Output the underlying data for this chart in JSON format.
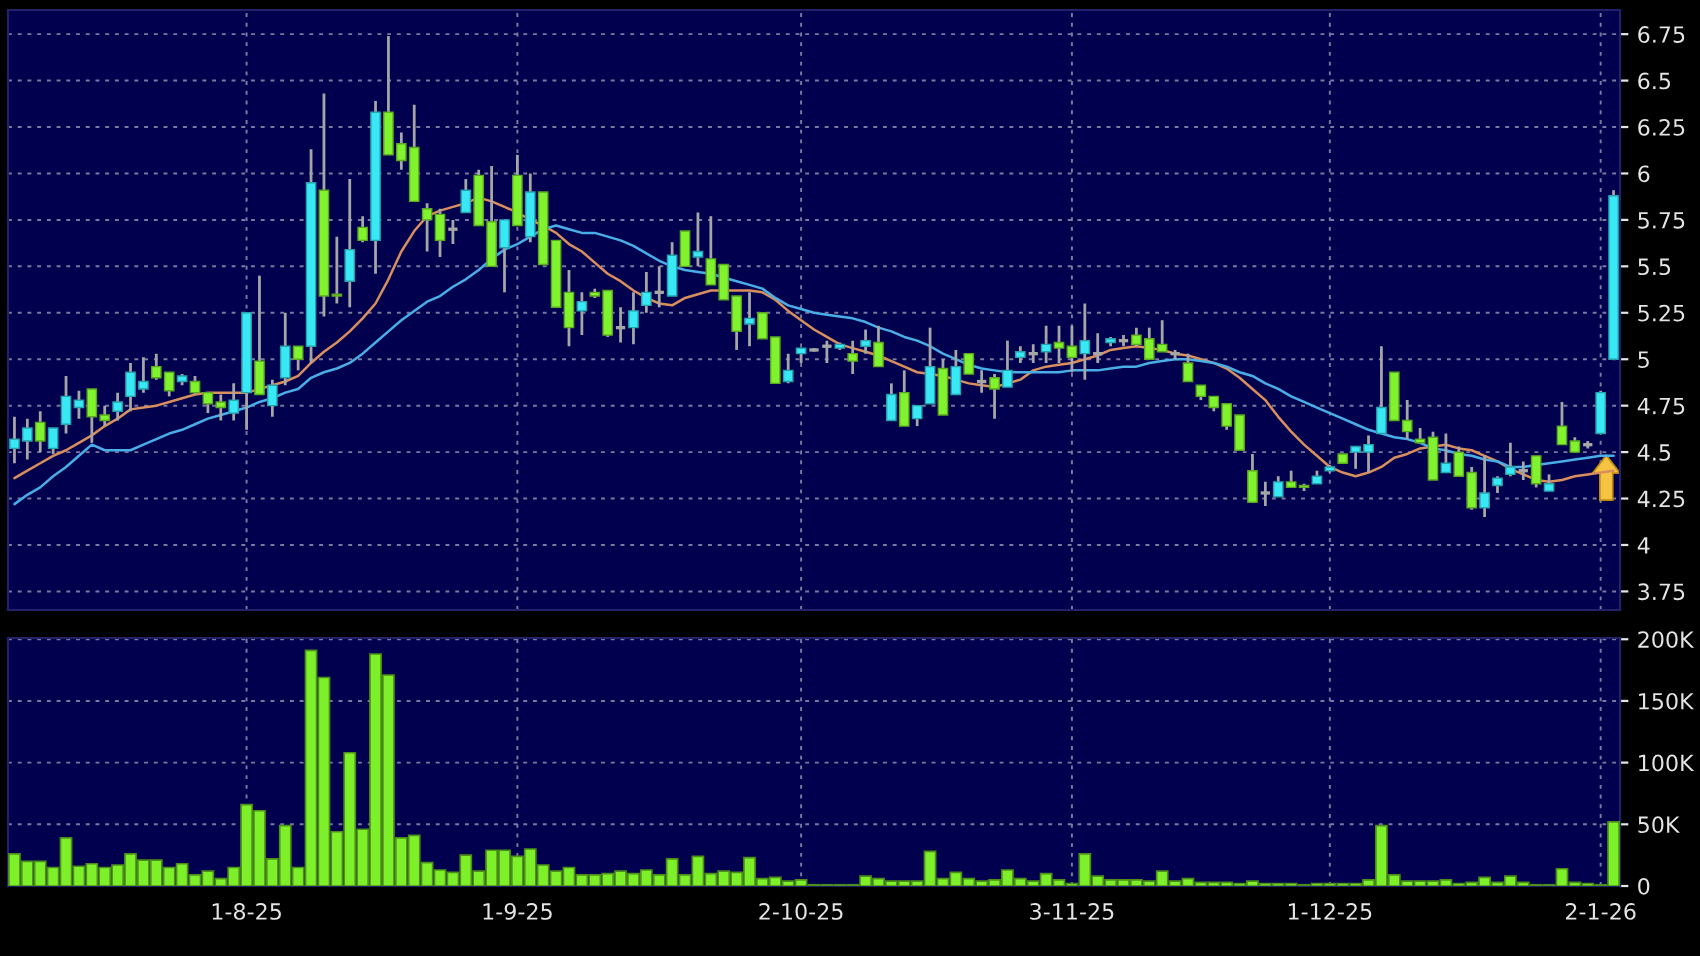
{
  "chart_data": [
    {
      "type": "candlestick",
      "categories": [
        null,
        null,
        null,
        null,
        null,
        null,
        null,
        null,
        null,
        null,
        null,
        null,
        null,
        null,
        null,
        null,
        null,
        null,
        null,
        null,
        null,
        null,
        null,
        null,
        null,
        null,
        null,
        null,
        null,
        null,
        null,
        null,
        null,
        null,
        null,
        null,
        null,
        null,
        null,
        null,
        null,
        null,
        null,
        null,
        null,
        null,
        null,
        null,
        null,
        null,
        null,
        null,
        null,
        null,
        null,
        null,
        null,
        null,
        null,
        null,
        null,
        null,
        null,
        null,
        null,
        null,
        null,
        null,
        null,
        null,
        null,
        null,
        null,
        null,
        null,
        null,
        null,
        null,
        null,
        null,
        null,
        null,
        null,
        null,
        null,
        null,
        null,
        null,
        null,
        null,
        null,
        null,
        null,
        null,
        null,
        null,
        null,
        null,
        null,
        null,
        null,
        null,
        null,
        null,
        null,
        null,
        null,
        null,
        null,
        null,
        null,
        null,
        null,
        null,
        null,
        null,
        null,
        null,
        null,
        null,
        null,
        null,
        null,
        null,
        null
      ],
      "ohlc": [
        [
          4.52,
          4.69,
          4.44,
          4.57
        ],
        [
          4.56,
          4.68,
          4.46,
          4.63
        ],
        [
          4.66,
          4.72,
          4.5,
          4.56
        ],
        [
          4.52,
          4.63,
          4.49,
          4.63
        ],
        [
          4.65,
          4.91,
          4.6,
          4.8
        ],
        [
          4.74,
          4.83,
          4.68,
          4.78
        ],
        [
          4.84,
          4.84,
          4.55,
          4.69
        ],
        [
          4.7,
          4.75,
          4.64,
          4.67
        ],
        [
          4.72,
          4.82,
          4.67,
          4.77
        ],
        [
          4.8,
          4.98,
          4.72,
          4.93
        ],
        [
          4.84,
          5.01,
          4.82,
          4.88
        ],
        [
          4.96,
          5.03,
          4.89,
          4.9
        ],
        [
          4.93,
          4.93,
          4.8,
          4.83
        ],
        [
          4.88,
          4.92,
          4.86,
          4.91
        ],
        [
          4.88,
          4.91,
          4.81,
          4.82
        ],
        [
          4.82,
          4.82,
          4.71,
          4.76
        ],
        [
          4.77,
          4.81,
          4.67,
          4.74
        ],
        [
          4.71,
          4.87,
          4.67,
          4.78
        ],
        [
          4.82,
          5.25,
          4.62,
          5.25
        ],
        [
          4.99,
          5.45,
          4.81,
          4.81
        ],
        [
          4.75,
          4.89,
          4.69,
          4.86
        ],
        [
          4.9,
          5.25,
          4.86,
          5.07
        ],
        [
          5.07,
          5.07,
          4.94,
          5.0
        ],
        [
          5.07,
          6.13,
          4.98,
          5.95
        ],
        [
          5.91,
          6.43,
          5.23,
          5.34
        ],
        [
          5.35,
          5.66,
          5.3,
          5.34
        ],
        [
          5.42,
          5.97,
          5.28,
          5.59
        ],
        [
          5.71,
          5.77,
          5.63,
          5.64
        ],
        [
          5.64,
          6.39,
          5.46,
          6.33
        ],
        [
          6.33,
          6.74,
          6.1,
          6.1
        ],
        [
          6.16,
          6.22,
          6.02,
          6.07
        ],
        [
          6.14,
          6.37,
          5.85,
          5.85
        ],
        [
          5.81,
          5.84,
          5.58,
          5.75
        ],
        [
          5.78,
          5.81,
          5.55,
          5.64
        ],
        [
          5.7,
          5.75,
          5.62,
          5.7
        ],
        [
          5.79,
          5.97,
          5.79,
          5.91
        ],
        [
          5.99,
          6.02,
          5.72,
          5.72
        ],
        [
          5.74,
          6.04,
          5.5,
          5.5
        ],
        [
          5.6,
          5.75,
          5.36,
          5.75
        ],
        [
          5.99,
          6.1,
          5.72,
          5.72
        ],
        [
          5.66,
          6.0,
          5.63,
          5.9
        ],
        [
          5.9,
          5.9,
          5.51,
          5.51
        ],
        [
          5.64,
          5.64,
          5.28,
          5.28
        ],
        [
          5.36,
          5.48,
          5.07,
          5.17
        ],
        [
          5.26,
          5.36,
          5.13,
          5.31
        ],
        [
          5.36,
          5.38,
          5.33,
          5.34
        ],
        [
          5.37,
          5.37,
          5.12,
          5.13
        ],
        [
          5.17,
          5.28,
          5.09,
          5.17
        ],
        [
          5.17,
          5.36,
          5.08,
          5.26
        ],
        [
          5.29,
          5.47,
          5.25,
          5.36
        ],
        [
          5.36,
          5.5,
          5.28,
          5.36
        ],
        [
          5.34,
          5.63,
          5.34,
          5.56
        ],
        [
          5.69,
          5.69,
          5.5,
          5.5
        ],
        [
          5.55,
          5.79,
          5.5,
          5.58
        ],
        [
          5.54,
          5.77,
          5.4,
          5.4
        ],
        [
          5.51,
          5.51,
          5.32,
          5.32
        ],
        [
          5.34,
          5.34,
          5.05,
          5.15
        ],
        [
          5.19,
          5.36,
          5.07,
          5.22
        ],
        [
          5.25,
          5.25,
          5.11,
          5.11
        ],
        [
          5.12,
          5.12,
          4.87,
          4.87
        ],
        [
          4.88,
          5.03,
          4.87,
          4.94
        ],
        [
          5.03,
          5.06,
          4.98,
          5.06
        ],
        [
          5.05,
          5.06,
          5.04,
          5.05
        ],
        [
          5.07,
          5.1,
          4.98,
          5.07
        ],
        [
          5.06,
          5.09,
          5.05,
          5.08
        ],
        [
          5.03,
          5.1,
          4.92,
          4.99
        ],
        [
          5.07,
          5.16,
          5.03,
          5.1
        ],
        [
          5.09,
          5.18,
          4.96,
          4.96
        ],
        [
          4.67,
          4.87,
          4.67,
          4.81
        ],
        [
          4.82,
          4.94,
          4.64,
          4.64
        ],
        [
          4.68,
          4.75,
          4.64,
          4.75
        ],
        [
          4.76,
          5.17,
          4.76,
          4.96
        ],
        [
          4.95,
          5.0,
          4.7,
          4.7
        ],
        [
          4.81,
          5.05,
          4.81,
          4.96
        ],
        [
          5.03,
          5.03,
          4.92,
          4.92
        ],
        [
          4.88,
          4.94,
          4.82,
          4.88
        ],
        [
          4.9,
          4.92,
          4.68,
          4.84
        ],
        [
          4.85,
          5.1,
          4.85,
          4.94
        ],
        [
          5.01,
          5.07,
          4.98,
          5.04
        ],
        [
          5.03,
          5.08,
          4.98,
          5.03
        ],
        [
          5.04,
          5.18,
          4.98,
          5.08
        ],
        [
          5.09,
          5.18,
          4.98,
          5.06
        ],
        [
          5.07,
          5.18,
          4.93,
          5.01
        ],
        [
          5.03,
          5.3,
          4.89,
          5.1
        ],
        [
          5.03,
          5.14,
          4.98,
          5.03
        ],
        [
          5.09,
          5.12,
          5.07,
          5.11
        ],
        [
          5.1,
          5.13,
          5.07,
          5.1
        ],
        [
          5.13,
          5.17,
          5.07,
          5.08
        ],
        [
          5.11,
          5.17,
          5.0,
          5.0
        ],
        [
          5.08,
          5.21,
          5.04,
          5.04
        ],
        [
          5.03,
          5.05,
          5.0,
          5.03
        ],
        [
          4.98,
          5.03,
          4.88,
          4.88
        ],
        [
          4.86,
          4.86,
          4.78,
          4.8
        ],
        [
          4.8,
          4.8,
          4.72,
          4.74
        ],
        [
          4.76,
          4.76,
          4.62,
          4.64
        ],
        [
          4.7,
          4.7,
          4.51,
          4.51
        ],
        [
          4.4,
          4.49,
          4.23,
          4.23
        ],
        [
          4.28,
          4.34,
          4.21,
          4.28
        ],
        [
          4.26,
          4.37,
          4.26,
          4.34
        ],
        [
          4.34,
          4.4,
          4.31,
          4.31
        ],
        [
          4.32,
          4.33,
          4.29,
          4.31
        ],
        [
          4.33,
          4.4,
          4.33,
          4.37
        ],
        [
          4.4,
          4.43,
          4.39,
          4.42
        ],
        [
          4.49,
          4.49,
          4.44,
          4.44
        ],
        [
          4.5,
          4.53,
          4.41,
          4.53
        ],
        [
          4.5,
          4.59,
          4.39,
          4.54
        ],
        [
          4.6,
          5.07,
          4.6,
          4.74
        ],
        [
          4.93,
          4.93,
          4.67,
          4.67
        ],
        [
          4.67,
          4.78,
          4.57,
          4.61
        ],
        [
          4.57,
          4.63,
          4.55,
          4.55
        ],
        [
          4.58,
          4.61,
          4.35,
          4.35
        ],
        [
          4.39,
          4.6,
          4.39,
          4.44
        ],
        [
          4.5,
          4.53,
          4.37,
          4.37
        ],
        [
          4.39,
          4.42,
          4.19,
          4.2
        ],
        [
          4.2,
          4.48,
          4.15,
          4.28
        ],
        [
          4.32,
          4.37,
          4.28,
          4.36
        ],
        [
          4.38,
          4.55,
          4.37,
          4.42
        ],
        [
          4.4,
          4.45,
          4.35,
          4.4
        ],
        [
          4.48,
          4.48,
          4.31,
          4.33
        ],
        [
          4.29,
          4.38,
          4.29,
          4.33
        ],
        [
          4.64,
          4.77,
          4.54,
          4.54
        ],
        [
          4.56,
          4.58,
          4.5,
          4.5
        ],
        [
          4.54,
          4.56,
          4.52,
          4.54
        ],
        [
          4.6,
          4.83,
          4.6,
          4.82
        ],
        [
          5.0,
          5.91,
          5.0,
          5.88
        ]
      ],
      "series": [
        {
          "type": "line",
          "color": "#d98e5e",
          "values": [
            4.36,
            4.4,
            4.44,
            4.48,
            4.51,
            4.55,
            4.59,
            4.64,
            4.68,
            4.73,
            4.74,
            4.75,
            4.77,
            4.79,
            4.81,
            4.82,
            4.82,
            4.82,
            4.82,
            4.84,
            4.86,
            4.88,
            4.91,
            4.98,
            5.04,
            5.09,
            5.15,
            5.22,
            5.3,
            5.43,
            5.58,
            5.69,
            5.77,
            5.8,
            5.82,
            5.84,
            5.87,
            5.85,
            5.82,
            5.79,
            5.75,
            5.72,
            5.68,
            5.62,
            5.58,
            5.52,
            5.46,
            5.42,
            5.37,
            5.33,
            5.3,
            5.29,
            5.33,
            5.35,
            5.37,
            5.37,
            5.37,
            5.37,
            5.36,
            5.32,
            5.26,
            5.21,
            5.16,
            5.12,
            5.08,
            5.06,
            5.04,
            5.02,
            4.99,
            4.96,
            4.93,
            4.92,
            4.91,
            4.89,
            4.87,
            4.86,
            4.85,
            4.87,
            4.89,
            4.94,
            4.96,
            4.97,
            4.98,
            5.0,
            5.02,
            5.05,
            5.06,
            5.07,
            5.06,
            5.05,
            5.03,
            5.02,
            5.0,
            4.98,
            4.95,
            4.9,
            4.84,
            4.78,
            4.69,
            4.61,
            4.54,
            4.48,
            4.42,
            4.39,
            4.37,
            4.39,
            4.42,
            4.47,
            4.49,
            4.52,
            4.53,
            4.54,
            4.52,
            4.51,
            4.48,
            4.45,
            4.41,
            4.38,
            4.35,
            4.34,
            4.35,
            4.37,
            4.38,
            4.39,
            4.4
          ]
        },
        {
          "type": "line",
          "color": "#4aaee6",
          "values": [
            4.22,
            4.27,
            4.31,
            4.37,
            4.42,
            4.48,
            4.54,
            4.51,
            4.51,
            4.51,
            4.54,
            4.57,
            4.6,
            4.62,
            4.65,
            4.68,
            4.7,
            4.72,
            4.74,
            4.77,
            4.79,
            4.82,
            4.84,
            4.9,
            4.93,
            4.95,
            4.98,
            5.03,
            5.09,
            5.15,
            5.21,
            5.26,
            5.31,
            5.34,
            5.39,
            5.43,
            5.48,
            5.54,
            5.59,
            5.62,
            5.66,
            5.7,
            5.72,
            5.7,
            5.68,
            5.68,
            5.66,
            5.64,
            5.61,
            5.57,
            5.53,
            5.5,
            5.48,
            5.47,
            5.46,
            5.44,
            5.42,
            5.4,
            5.38,
            5.33,
            5.29,
            5.27,
            5.25,
            5.24,
            5.23,
            5.22,
            5.2,
            5.17,
            5.15,
            5.12,
            5.1,
            5.07,
            5.03,
            5.0,
            4.97,
            4.95,
            4.94,
            4.93,
            4.93,
            4.93,
            4.93,
            4.93,
            4.94,
            4.94,
            4.94,
            4.95,
            4.96,
            4.96,
            4.98,
            4.99,
            5.0,
            5.0,
            4.99,
            4.98,
            4.96,
            4.93,
            4.91,
            4.87,
            4.84,
            4.8,
            4.77,
            4.74,
            4.71,
            4.68,
            4.65,
            4.62,
            4.6,
            4.58,
            4.57,
            4.55,
            4.52,
            4.51,
            4.49,
            4.48,
            4.46,
            4.45,
            4.42,
            4.42,
            4.43,
            4.44,
            4.45,
            4.46,
            4.47,
            4.48,
            4.48
          ]
        }
      ],
      "ylim": [
        3.65,
        6.88
      ],
      "yticks": [
        3.75,
        4,
        4.25,
        4.5,
        4.75,
        5,
        5.25,
        5.5,
        5.75,
        6,
        6.25,
        6.5,
        6.75
      ],
      "grid": true,
      "tick_labels": "y"
    },
    {
      "type": "bar",
      "categories": [
        null,
        null,
        null,
        null,
        null,
        null,
        null,
        null,
        null,
        null,
        null,
        null,
        null,
        null,
        null,
        null,
        null,
        null,
        "1-8-25",
        null,
        null,
        null,
        null,
        null,
        null,
        null,
        null,
        null,
        null,
        null,
        null,
        null,
        null,
        null,
        null,
        null,
        null,
        null,
        null,
        "1-9-25",
        null,
        null,
        null,
        null,
        null,
        null,
        null,
        null,
        null,
        null,
        null,
        null,
        null,
        null,
        null,
        null,
        null,
        null,
        null,
        null,
        null,
        "2-10-25",
        null,
        null,
        null,
        null,
        null,
        null,
        null,
        null,
        null,
        null,
        null,
        null,
        null,
        null,
        null,
        null,
        null,
        null,
        null,
        null,
        "3-11-25",
        null,
        null,
        null,
        null,
        null,
        null,
        null,
        null,
        null,
        null,
        null,
        null,
        null,
        null,
        null,
        null,
        null,
        null,
        null,
        "1-12-25",
        null,
        null,
        null,
        null,
        null,
        null,
        null,
        null,
        null,
        null,
        null,
        null,
        null,
        null,
        null,
        null,
        null,
        null,
        null,
        null,
        "2-1-26",
        null
      ],
      "color": "#7ef02a",
      "values": [
        26000,
        20000,
        20000,
        15000,
        39000,
        16000,
        18000,
        15000,
        17000,
        26000,
        21000,
        21000,
        15000,
        18000,
        9000,
        12000,
        6000,
        15000,
        66000,
        61000,
        22000,
        49000,
        15000,
        191000,
        169000,
        44000,
        108000,
        46000,
        188000,
        171000,
        39000,
        41000,
        19000,
        13000,
        11000,
        25000,
        12000,
        29000,
        29000,
        24000,
        30000,
        17000,
        12000,
        15000,
        9000,
        9000,
        10000,
        12000,
        10000,
        13000,
        9000,
        22000,
        9000,
        24000,
        10000,
        12000,
        11000,
        23000,
        6000,
        7000,
        4000,
        5000,
        1000,
        1000,
        1000,
        1000,
        8000,
        6000,
        4000,
        4000,
        4000,
        28000,
        6000,
        11000,
        6000,
        4000,
        5000,
        13000,
        6000,
        4000,
        10000,
        5000,
        2000,
        26000,
        8000,
        5000,
        5000,
        5000,
        4000,
        12000,
        4000,
        6000,
        3000,
        3000,
        3000,
        2000,
        4000,
        2000,
        2000,
        2000,
        1000,
        2000,
        2000,
        2000,
        2000,
        5000,
        49000,
        9000,
        4000,
        4000,
        4000,
        5000,
        2000,
        3000,
        7000,
        3000,
        8000,
        3000,
        1000,
        1000,
        14000,
        3000,
        2000,
        1000,
        52000
      ],
      "ylim": [
        0,
        201000
      ],
      "yticks": [
        0,
        {
          "value": 50000,
          "label": "50K"
        },
        {
          "value": 100000,
          "label": "100K"
        },
        {
          "value": 150000,
          "label": "150K"
        },
        {
          "value": 200000,
          "label": "200K"
        }
      ],
      "grid": true
    }
  ]
}
